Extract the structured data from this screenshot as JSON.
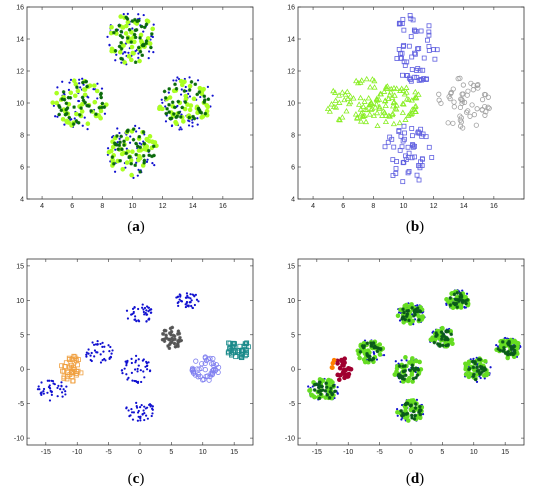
{
  "captions": [
    "(a)",
    "(b)",
    "(c)",
    "(d)"
  ],
  "colors": {
    "blue_dot": "#1010d0",
    "light_green": "#aaff22",
    "dark_green": "#0a6a0a",
    "blue_square": "#6060e0",
    "gray_circle": "#a0a0a0",
    "orange_square": "#f0a040",
    "dark_gray_star": "#555555",
    "teal_square": "#1a8a8a",
    "lavender_circle": "#8080f0",
    "crimson": "#a00030",
    "orange": "#ff7f00"
  },
  "chart_data": [
    {
      "type": "scatter",
      "panel": "a",
      "xlim": [
        3,
        18
      ],
      "ylim": [
        4,
        16
      ],
      "xticks": [
        4,
        6,
        8,
        10,
        12,
        14,
        16
      ],
      "yticks": [
        4,
        6,
        8,
        10,
        12,
        14,
        16
      ],
      "xtick_labels": [
        "4",
        "6",
        "8",
        "10",
        "12",
        "14",
        "16"
      ],
      "ytick_labels": [
        "4",
        "6",
        "8",
        "10",
        "12",
        "14",
        "16"
      ],
      "series": [
        {
          "marker": "dot",
          "color": "#1010d0",
          "clusters": [
            {
              "cx": 10,
              "cy": 14,
              "rx": 1.7,
              "ry": 1.8,
              "n": 55
            },
            {
              "cx": 6.5,
              "cy": 10,
              "rx": 1.9,
              "ry": 1.7,
              "n": 55
            },
            {
              "cx": 13.5,
              "cy": 10,
              "rx": 1.9,
              "ry": 1.7,
              "n": 55
            },
            {
              "cx": 10,
              "cy": 7,
              "rx": 1.7,
              "ry": 1.8,
              "n": 55
            }
          ]
        },
        {
          "marker": "filled-circle",
          "color": "#aaff22",
          "clusters": [
            {
              "cx": 10,
              "cy": 14,
              "rx": 1.7,
              "ry": 1.6,
              "n": 45
            },
            {
              "cx": 6.5,
              "cy": 10,
              "rx": 1.8,
              "ry": 1.5,
              "n": 45
            },
            {
              "cx": 13.5,
              "cy": 10,
              "rx": 1.8,
              "ry": 1.5,
              "n": 45
            },
            {
              "cx": 10,
              "cy": 7,
              "rx": 1.7,
              "ry": 1.6,
              "n": 45
            }
          ]
        },
        {
          "marker": "star",
          "color": "#0a6a0a",
          "clusters": [
            {
              "cx": 10,
              "cy": 14,
              "rx": 1.5,
              "ry": 1.5,
              "n": 40
            },
            {
              "cx": 6.5,
              "cy": 10,
              "rx": 1.7,
              "ry": 1.4,
              "n": 40
            },
            {
              "cx": 13.5,
              "cy": 10,
              "rx": 1.7,
              "ry": 1.4,
              "n": 40
            },
            {
              "cx": 10,
              "cy": 7,
              "rx": 1.5,
              "ry": 1.5,
              "n": 40
            }
          ]
        }
      ]
    },
    {
      "type": "scatter",
      "panel": "b",
      "xlim": [
        3,
        18
      ],
      "ylim": [
        4,
        16
      ],
      "xticks": [
        4,
        6,
        8,
        10,
        12,
        14,
        16
      ],
      "yticks": [
        4,
        6,
        8,
        10,
        12,
        14,
        16
      ],
      "xtick_labels": [
        "4",
        "6",
        "8",
        "10",
        "12",
        "14",
        "16"
      ],
      "ytick_labels": [
        "4",
        "6",
        "8",
        "10",
        "12",
        "14",
        "16"
      ],
      "series": [
        {
          "marker": "triangle",
          "color": "#88ee22",
          "clusters": [
            {
              "cx": 8,
              "cy": 10,
              "rx": 3.3,
              "ry": 1.5,
              "n": 130
            }
          ]
        },
        {
          "marker": "square",
          "color": "#6060e0",
          "clusters": [
            {
              "cx": 10.8,
              "cy": 13.4,
              "rx": 1.6,
              "ry": 2.3,
              "n": 60
            },
            {
              "cx": 10.3,
              "cy": 6.8,
              "rx": 1.7,
              "ry": 1.8,
              "n": 55
            }
          ]
        },
        {
          "marker": "circle",
          "color": "#a0a0a0",
          "clusters": [
            {
              "cx": 14,
              "cy": 10,
              "rx": 1.8,
              "ry": 1.6,
              "n": 55
            }
          ]
        }
      ]
    },
    {
      "type": "scatter",
      "panel": "c",
      "xlim": [
        -18,
        18
      ],
      "ylim": [
        -11,
        16
      ],
      "xticks": [
        -15,
        -10,
        -5,
        0,
        5,
        10,
        15
      ],
      "yticks": [
        -10,
        -5,
        0,
        5,
        10,
        15
      ],
      "xtick_labels": [
        "-15",
        "-10",
        "-5",
        "0",
        "5",
        "10",
        "15"
      ],
      "ytick_labels": [
        "-10",
        "-5",
        "0",
        "5",
        "10",
        "15"
      ],
      "series": [
        {
          "marker": "dot",
          "color": "#1010d0",
          "clusters": [
            {
              "cx": -14,
              "cy": -3,
              "rx": 2.4,
              "ry": 1.6,
              "n": 40
            },
            {
              "cx": -6.5,
              "cy": 2.5,
              "rx": 2.3,
              "ry": 1.7,
              "n": 40
            },
            {
              "cx": 0,
              "cy": 8,
              "rx": 2.2,
              "ry": 1.5,
              "n": 40
            },
            {
              "cx": 7.5,
              "cy": 10,
              "rx": 2.0,
              "ry": 1.3,
              "n": 40
            },
            {
              "cx": -0.5,
              "cy": 0,
              "rx": 2.4,
              "ry": 2.0,
              "n": 45
            },
            {
              "cx": 0,
              "cy": -6,
              "rx": 2.3,
              "ry": 1.5,
              "n": 40
            }
          ]
        },
        {
          "marker": "square",
          "color": "#f0a040",
          "clusters": [
            {
              "cx": -11,
              "cy": 0,
              "rx": 1.7,
              "ry": 2.0,
              "n": 40
            }
          ]
        },
        {
          "marker": "star",
          "color": "#555555",
          "clusters": [
            {
              "cx": 5,
              "cy": 4.5,
              "rx": 1.6,
              "ry": 1.6,
              "n": 40
            }
          ]
        },
        {
          "marker": "circle",
          "color": "#8080f0",
          "clusters": [
            {
              "cx": 10.5,
              "cy": 0,
              "rx": 2.2,
              "ry": 1.8,
              "n": 45
            }
          ]
        },
        {
          "marker": "square",
          "color": "#1a8a8a",
          "clusters": [
            {
              "cx": 15.5,
              "cy": 3,
              "rx": 2.0,
              "ry": 1.5,
              "n": 45
            }
          ]
        }
      ]
    },
    {
      "type": "scatter",
      "panel": "d",
      "xlim": [
        -18,
        18
      ],
      "ylim": [
        -11,
        16
      ],
      "xticks": [
        -15,
        -10,
        -5,
        0,
        5,
        10,
        15
      ],
      "yticks": [
        -10,
        -5,
        0,
        5,
        10,
        15
      ],
      "xtick_labels": [
        "-15",
        "-10",
        "-5",
        "0",
        "5",
        "10",
        "15"
      ],
      "ytick_labels": [
        "-10",
        "-5",
        "0",
        "5",
        "10",
        "15"
      ],
      "series": [
        {
          "marker": "dot",
          "color": "#1010d0",
          "clusters": [
            {
              "cx": -14,
              "cy": -3,
              "rx": 2.5,
              "ry": 1.8,
              "n": 30
            },
            {
              "cx": -6.5,
              "cy": 2.5,
              "rx": 2.4,
              "ry": 1.8,
              "n": 30
            },
            {
              "cx": 0,
              "cy": 8,
              "rx": 2.3,
              "ry": 1.7,
              "n": 30
            },
            {
              "cx": 7.5,
              "cy": 10,
              "rx": 2.1,
              "ry": 1.5,
              "n": 30
            },
            {
              "cx": -0.5,
              "cy": 0,
              "rx": 2.5,
              "ry": 2.1,
              "n": 30
            },
            {
              "cx": 0,
              "cy": -6,
              "rx": 2.4,
              "ry": 1.7,
              "n": 30
            },
            {
              "cx": 5,
              "cy": 4.5,
              "rx": 2.1,
              "ry": 1.7,
              "n": 30
            },
            {
              "cx": 10.5,
              "cy": 0,
              "rx": 2.3,
              "ry": 1.9,
              "n": 30
            },
            {
              "cx": 15.5,
              "cy": 3,
              "rx": 2.1,
              "ry": 1.6,
              "n": 30
            }
          ]
        },
        {
          "marker": "filled-circle",
          "color": "#66dd22",
          "clusters": [
            {
              "cx": -14,
              "cy": -3,
              "rx": 2.3,
              "ry": 1.6,
              "n": 35
            },
            {
              "cx": -6.5,
              "cy": 2.5,
              "rx": 2.2,
              "ry": 1.6,
              "n": 35
            },
            {
              "cx": 0,
              "cy": 8,
              "rx": 2.1,
              "ry": 1.5,
              "n": 35
            },
            {
              "cx": 7.5,
              "cy": 10,
              "rx": 1.9,
              "ry": 1.3,
              "n": 35
            },
            {
              "cx": -0.5,
              "cy": 0,
              "rx": 2.3,
              "ry": 1.9,
              "n": 35
            },
            {
              "cx": 0,
              "cy": -6,
              "rx": 2.2,
              "ry": 1.5,
              "n": 35
            },
            {
              "cx": 5,
              "cy": 4.5,
              "rx": 1.9,
              "ry": 1.5,
              "n": 35
            },
            {
              "cx": 10.5,
              "cy": 0,
              "rx": 2.1,
              "ry": 1.7,
              "n": 35
            },
            {
              "cx": 15.5,
              "cy": 3,
              "rx": 1.9,
              "ry": 1.4,
              "n": 35
            }
          ]
        },
        {
          "marker": "star",
          "color": "#0a5a1a",
          "clusters": [
            {
              "cx": -14,
              "cy": -3,
              "rx": 2.0,
              "ry": 1.4,
              "n": 25
            },
            {
              "cx": -6.5,
              "cy": 2.5,
              "rx": 1.9,
              "ry": 1.4,
              "n": 25
            },
            {
              "cx": 0,
              "cy": 8,
              "rx": 1.8,
              "ry": 1.3,
              "n": 25
            },
            {
              "cx": 7.5,
              "cy": 10,
              "rx": 1.6,
              "ry": 1.1,
              "n": 25
            },
            {
              "cx": -0.5,
              "cy": 0,
              "rx": 2.0,
              "ry": 1.7,
              "n": 25
            },
            {
              "cx": 0,
              "cy": -6,
              "rx": 1.9,
              "ry": 1.3,
              "n": 25
            },
            {
              "cx": 5,
              "cy": 4.5,
              "rx": 1.6,
              "ry": 1.3,
              "n": 25
            },
            {
              "cx": 10.5,
              "cy": 0,
              "rx": 1.8,
              "ry": 1.5,
              "n": 25
            },
            {
              "cx": 15.5,
              "cy": 3,
              "rx": 1.6,
              "ry": 1.2,
              "n": 25
            }
          ]
        },
        {
          "marker": "filled-circle",
          "color": "#a00030",
          "clusters": [
            {
              "cx": -11,
              "cy": 0,
              "rx": 1.5,
              "ry": 1.7,
              "n": 30
            }
          ]
        },
        {
          "marker": "filled-circle",
          "color": "#ff7f00",
          "clusters": [
            {
              "cx": -12.3,
              "cy": 0.8,
              "rx": 0.6,
              "ry": 0.8,
              "n": 4
            }
          ]
        }
      ]
    }
  ]
}
